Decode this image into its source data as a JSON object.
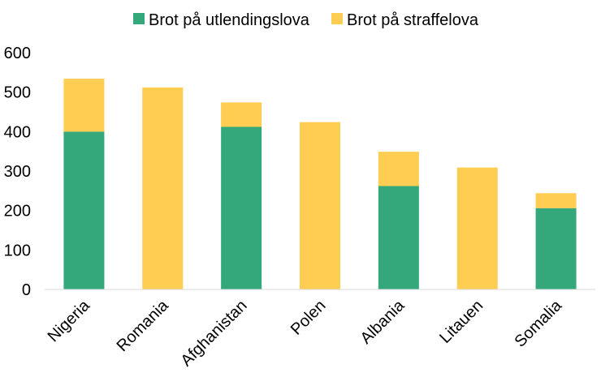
{
  "chart_data": {
    "type": "bar",
    "stacked": true,
    "categories": [
      "Nigeria",
      "Romania",
      "Afghanistan",
      "Polen",
      "Albania",
      "Litauen",
      "Somalia"
    ],
    "series": [
      {
        "name": "Brot på utlendingslova",
        "color": "#34a87a",
        "values": [
          400,
          0,
          412,
          0,
          262,
          0,
          206
        ]
      },
      {
        "name": "Brot på straffelova",
        "color": "#fecd51",
        "values": [
          134,
          512,
          62,
          424,
          87,
          309,
          38
        ]
      }
    ],
    "ylim": [
      0,
      600
    ],
    "yticks": [
      0,
      100,
      200,
      300,
      400,
      500,
      600
    ],
    "grid": false,
    "legend_position": "top"
  }
}
